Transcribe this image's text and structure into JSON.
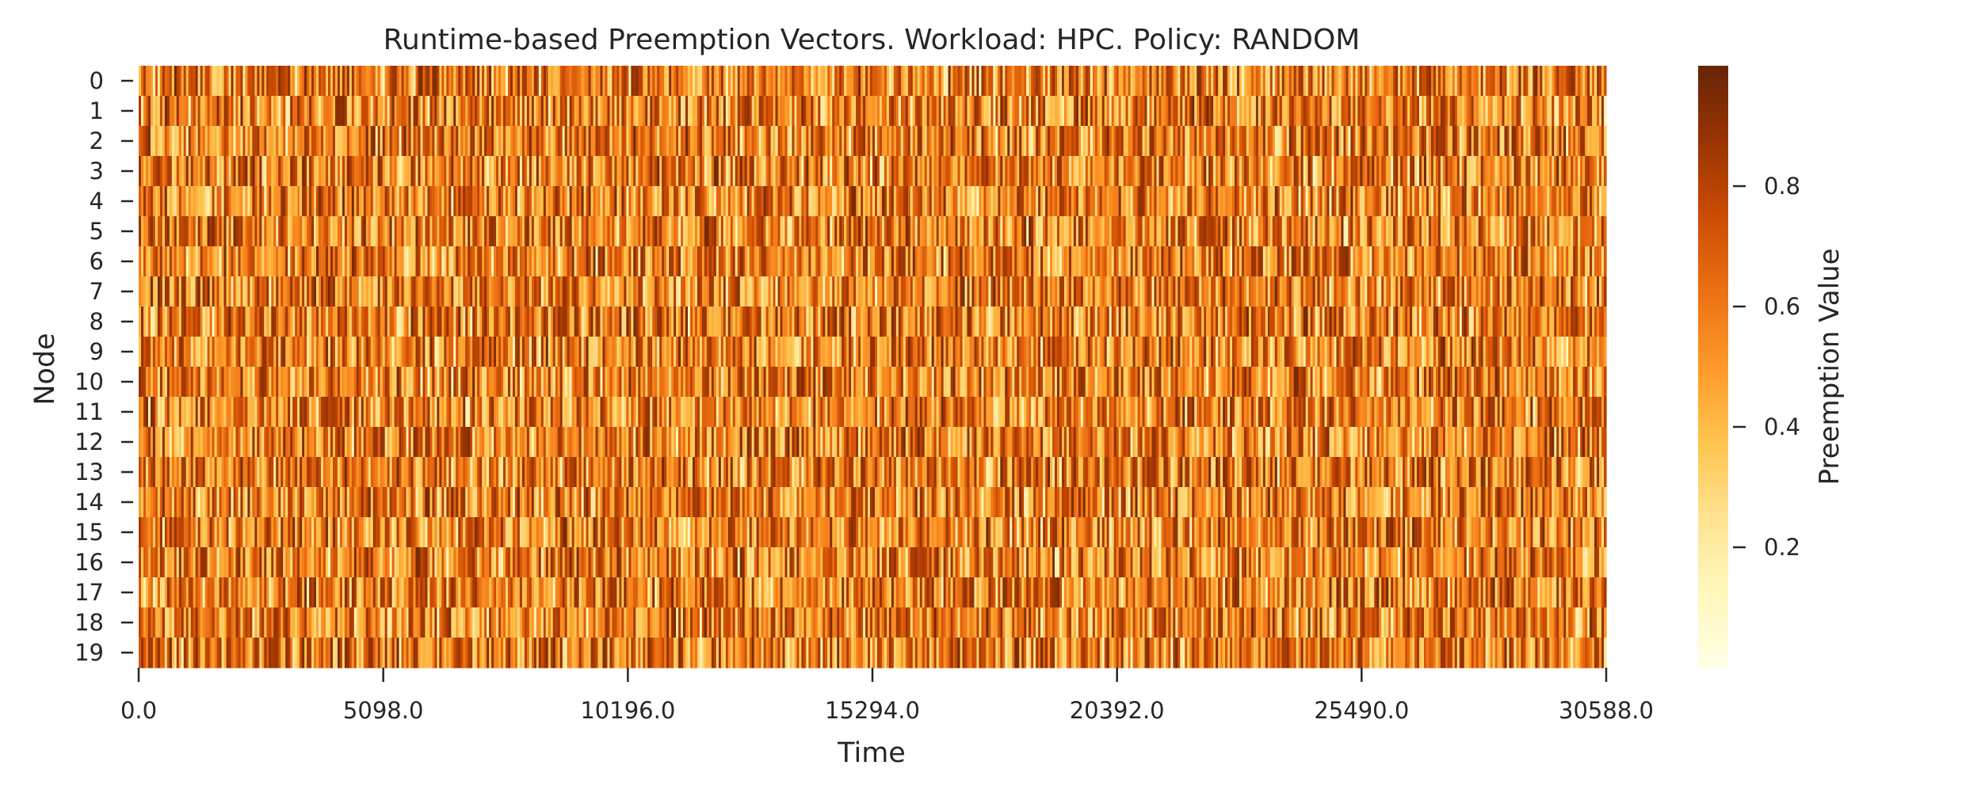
{
  "chart_data": {
    "type": "heatmap",
    "title": "Runtime-based Preemption Vectors. Workload: HPC. Policy: RANDOM",
    "xlabel": "Time",
    "ylabel": "Node",
    "colorbar_label": "Preemption Value",
    "colormap": "YlOrBr",
    "x_range": [
      0,
      30588
    ],
    "x_ticks": [
      "0.0",
      "5098.0",
      "10196.0",
      "15294.0",
      "20392.0",
      "25490.0",
      "30588.0"
    ],
    "y_ticks": [
      "0",
      "1",
      "2",
      "3",
      "4",
      "5",
      "6",
      "7",
      "8",
      "9",
      "10",
      "11",
      "12",
      "13",
      "14",
      "15",
      "16",
      "17",
      "18",
      "19"
    ],
    "colorbar_range": [
      0,
      1
    ],
    "colorbar_ticks": [
      "0.2",
      "0.4",
      "0.6",
      "0.8"
    ],
    "colorbar_tick_values": [
      0.2,
      0.4,
      0.6,
      0.8
    ],
    "value_distribution": "dense random values mostly between 0.3 and 0.9 across all nodes and time steps",
    "colors": {
      "min": "#ffffe5",
      "max": "#662506"
    }
  }
}
